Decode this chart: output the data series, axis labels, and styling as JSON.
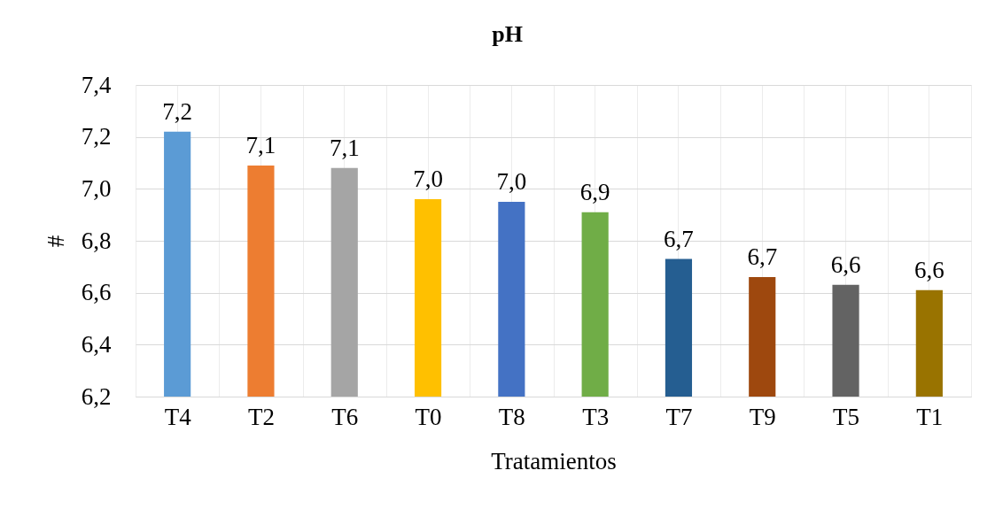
{
  "chart_data": {
    "type": "bar",
    "title": "pH",
    "xlabel": "Tratamientos",
    "ylabel": "#",
    "categories": [
      "T4",
      "T2",
      "T6",
      "T0",
      "T8",
      "T3",
      "T7",
      "T9",
      "T5",
      "T1"
    ],
    "values": [
      7.22,
      7.09,
      7.08,
      6.96,
      6.95,
      6.91,
      6.73,
      6.66,
      6.63,
      6.61
    ],
    "colors": [
      "#5b9bd5",
      "#ed7d31",
      "#a5a5a5",
      "#ffc000",
      "#4472c4",
      "#70ad47",
      "#255e91",
      "#9e480e",
      "#636363",
      "#997300"
    ],
    "value_labels": [
      "7,2",
      "7,1",
      "7,1",
      "7,0",
      "7,0",
      "6,9",
      "6,7",
      "6,7",
      "6,6",
      "6,6"
    ],
    "ylim": [
      6.2,
      7.4
    ],
    "yticks": [
      {
        "value": 6.2,
        "label": "6,2"
      },
      {
        "value": 6.4,
        "label": "6,4"
      },
      {
        "value": 6.6,
        "label": "6,6"
      },
      {
        "value": 6.8,
        "label": "6,8"
      },
      {
        "value": 7.0,
        "label": "7,0"
      },
      {
        "value": 7.2,
        "label": "7,2"
      },
      {
        "value": 7.4,
        "label": "7,4"
      }
    ],
    "grid": true
  }
}
